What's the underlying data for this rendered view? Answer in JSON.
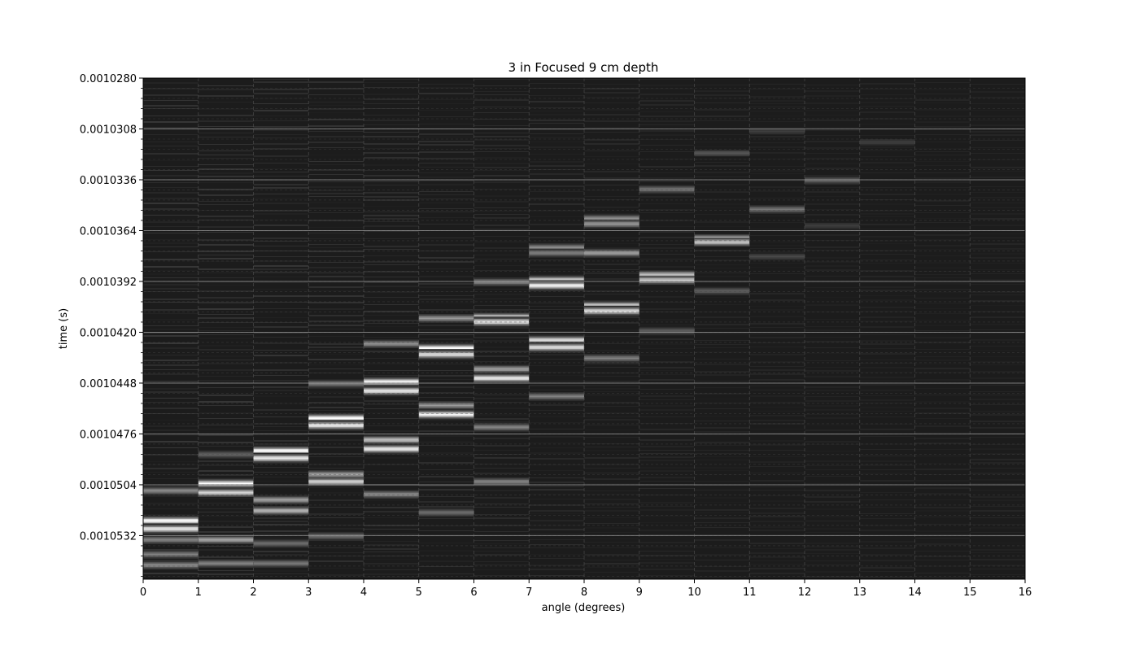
{
  "chart_data": {
    "type": "heatmap",
    "title": "3 in Focused 9 cm depth",
    "xlabel": "angle (degrees)",
    "ylabel": "time (s)",
    "xlim": [
      0,
      16
    ],
    "ylim": [
      0.001028,
      0.0010556
    ],
    "y_inverted": true,
    "x_ticks": [
      0,
      1,
      2,
      3,
      4,
      5,
      6,
      7,
      8,
      9,
      10,
      11,
      12,
      13,
      14,
      15,
      16
    ],
    "x_tick_labels": [
      "0",
      "1",
      "2",
      "3",
      "4",
      "5",
      "6",
      "7",
      "8",
      "9",
      "10",
      "11",
      "12",
      "13",
      "14",
      "15",
      "16"
    ],
    "y_ticks": [
      0.001028,
      0.0010308,
      0.0010336,
      0.0010364,
      0.0010392,
      0.001042,
      0.0010448,
      0.0010476,
      0.0010504,
      0.0010532
    ],
    "y_tick_labels": [
      "0.0010280",
      "0.0010308",
      "0.0010336",
      "0.0010364",
      "0.0010392",
      "0.0010420",
      "0.0010448",
      "0.0010476",
      "0.0010504",
      "0.0010532"
    ],
    "grid": true,
    "colormap": "gray",
    "background_color": "#1c1c1c",
    "columns": [
      {
        "angle_start": 0,
        "angle_end": 1,
        "bands": [
          [
            0.0010507,
            0.5
          ],
          [
            0.00105235,
            1.0
          ],
          [
            0.0010528,
            0.9
          ],
          [
            0.0010534,
            0.45
          ],
          [
            0.0010542,
            0.45
          ],
          [
            0.0010548,
            0.5
          ]
        ]
      },
      {
        "angle_start": 1,
        "angle_end": 2,
        "bands": [
          [
            0.0010487,
            0.3
          ],
          [
            0.0010503,
            1.0
          ],
          [
            0.0010508,
            0.8
          ],
          [
            0.0010534,
            0.6
          ],
          [
            0.0010547,
            0.45
          ]
        ]
      },
      {
        "angle_start": 2,
        "angle_end": 3,
        "bands": [
          [
            0.0010485,
            1.0
          ],
          [
            0.0010489,
            0.9
          ],
          [
            0.0010512,
            0.6
          ],
          [
            0.0010518,
            0.7
          ],
          [
            0.0010536,
            0.35
          ],
          [
            0.0010547,
            0.4
          ]
        ]
      },
      {
        "angle_start": 3,
        "angle_end": 4,
        "bands": [
          [
            0.0010448,
            0.4
          ],
          [
            0.0010467,
            1.0
          ],
          [
            0.0010471,
            0.95
          ],
          [
            0.0010498,
            0.6
          ],
          [
            0.0010502,
            0.8
          ],
          [
            0.0010532,
            0.35
          ]
        ]
      },
      {
        "angle_start": 4,
        "angle_end": 5,
        "bands": [
          [
            0.0010426,
            0.5
          ],
          [
            0.0010447,
            1.0
          ],
          [
            0.0010452,
            0.9
          ],
          [
            0.0010479,
            0.75
          ],
          [
            0.0010484,
            0.95
          ],
          [
            0.0010509,
            0.5
          ]
        ]
      },
      {
        "angle_start": 5,
        "angle_end": 6,
        "bands": [
          [
            0.0010412,
            0.55
          ],
          [
            0.00104285,
            1.0
          ],
          [
            0.0010432,
            0.9
          ],
          [
            0.001046,
            0.55
          ],
          [
            0.0010465,
            0.95
          ],
          [
            0.0010519,
            0.35
          ]
        ]
      },
      {
        "angle_start": 6,
        "angle_end": 7,
        "bands": [
          [
            0.0010392,
            0.45
          ],
          [
            0.00104115,
            1.0
          ],
          [
            0.0010414,
            0.9
          ],
          [
            0.001044,
            0.6
          ],
          [
            0.0010445,
            0.95
          ],
          [
            0.0010472,
            0.45
          ],
          [
            0.0010502,
            0.45
          ]
        ]
      },
      {
        "angle_start": 7,
        "angle_end": 8,
        "bands": [
          [
            0.0010373,
            0.5
          ],
          [
            0.0010376,
            0.45
          ],
          [
            0.0010391,
            0.9
          ],
          [
            0.0010394,
            0.95
          ],
          [
            0.0010424,
            0.85
          ],
          [
            0.0010428,
            0.9
          ],
          [
            0.0010455,
            0.45
          ]
        ]
      },
      {
        "angle_start": 8,
        "angle_end": 9,
        "bands": [
          [
            0.0010357,
            0.5
          ],
          [
            0.001036,
            0.55
          ],
          [
            0.0010376,
            0.6
          ],
          [
            0.0010405,
            0.85
          ],
          [
            0.0010408,
            0.9
          ],
          [
            0.0010434,
            0.45
          ]
        ]
      },
      {
        "angle_start": 9,
        "angle_end": 10,
        "bands": [
          [
            0.0010341,
            0.4
          ],
          [
            0.0010388,
            0.7
          ],
          [
            0.0010391,
            0.8
          ],
          [
            0.0010419,
            0.3
          ]
        ]
      },
      {
        "angle_start": 10,
        "angle_end": 11,
        "bands": [
          [
            0.0010321,
            0.25
          ],
          [
            0.0010368,
            0.7
          ],
          [
            0.001037,
            0.75
          ],
          [
            0.0010397,
            0.3
          ]
        ]
      },
      {
        "angle_start": 11,
        "angle_end": 12,
        "bands": [
          [
            0.0010309,
            0.15
          ],
          [
            0.0010352,
            0.4
          ],
          [
            0.0010378,
            0.2
          ]
        ]
      },
      {
        "angle_start": 12,
        "angle_end": 13,
        "bands": [
          [
            0.0010336,
            0.3
          ],
          [
            0.0010361,
            0.15
          ]
        ]
      },
      {
        "angle_start": 13,
        "angle_end": 14,
        "bands": [
          [
            0.0010315,
            0.15
          ]
        ]
      },
      {
        "angle_start": 14,
        "angle_end": 15,
        "bands": []
      },
      {
        "angle_start": 15,
        "angle_end": 16,
        "bands": []
      }
    ]
  }
}
